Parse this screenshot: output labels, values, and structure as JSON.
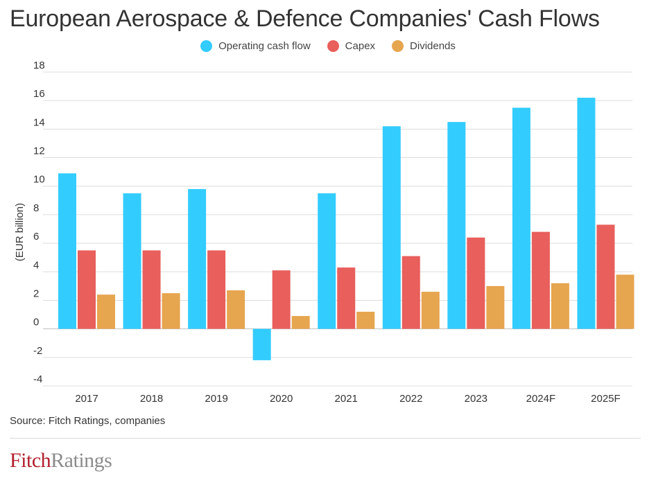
{
  "chart_data": {
    "type": "bar",
    "title": "European Aerospace & Defence Companies' Cash Flows",
    "ylabel": "(EUR billion)",
    "xlabel": "",
    "ylim": [
      -4,
      18
    ],
    "yticks": [
      -4,
      -2,
      0,
      2,
      4,
      6,
      8,
      10,
      12,
      14,
      16,
      18
    ],
    "categories": [
      "2017",
      "2018",
      "2019",
      "2020",
      "2021",
      "2022",
      "2023",
      "2024F",
      "2025F"
    ],
    "series": [
      {
        "name": "Operating cash flow",
        "color": "#33ccff",
        "values": [
          10.9,
          9.5,
          9.8,
          -2.2,
          9.5,
          14.2,
          14.5,
          15.5,
          16.2
        ]
      },
      {
        "name": "Capex",
        "color": "#e85f5c",
        "values": [
          5.5,
          5.5,
          5.5,
          4.1,
          4.3,
          5.1,
          6.4,
          6.8,
          7.3
        ]
      },
      {
        "name": "Dividends",
        "color": "#e6a54f",
        "values": [
          2.4,
          2.5,
          2.7,
          0.9,
          1.2,
          2.6,
          3.0,
          3.2,
          3.8
        ]
      }
    ],
    "legend_position": "top-center",
    "grid": true
  },
  "footer": {
    "source": "Source: Fitch Ratings, companies",
    "brand_first": "Fitch",
    "brand_second": "Ratings"
  }
}
